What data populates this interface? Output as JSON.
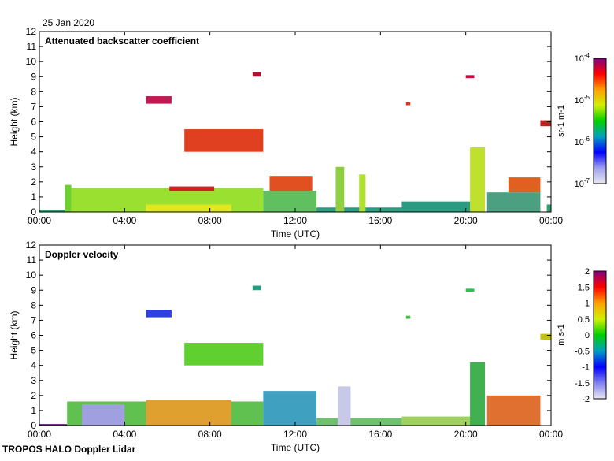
{
  "date_label": "25 Jan 2020",
  "footer": "TROPOS HALO Doppler Lidar",
  "chart_data": [
    {
      "type": "heatmap",
      "title": "Attenuated backscatter coefficient",
      "xlabel": "Time (UTC)",
      "ylabel": "Height (km)",
      "xlim": [
        0,
        24
      ],
      "ylim": [
        0,
        12
      ],
      "xticks": [
        "00:00",
        "04:00",
        "08:00",
        "12:00",
        "16:00",
        "20:00",
        "00:00"
      ],
      "yticks": [
        "0",
        "1",
        "2",
        "3",
        "4",
        "5",
        "6",
        "7",
        "8",
        "9",
        "10",
        "11",
        "12"
      ],
      "colorbar": {
        "label": "sr-1 m-1",
        "ticks": [
          "10-7",
          "10-6",
          "10-5",
          "10-4"
        ],
        "scale": "log",
        "range": [
          1e-07,
          0.0001
        ]
      },
      "features": [
        {
          "t0": 0,
          "t1": 1.3,
          "h0": 0,
          "h1": 0.15,
          "c": "#2aa070"
        },
        {
          "t0": 1.2,
          "t1": 1.5,
          "h0": 0,
          "h1": 1.8,
          "c": "#6cd030"
        },
        {
          "t0": 1.5,
          "t1": 10.5,
          "h0": 0,
          "h1": 1.6,
          "c": "#9ae030"
        },
        {
          "t0": 5,
          "t1": 9,
          "h0": 0,
          "h1": 0.5,
          "c": "#e0e820"
        },
        {
          "t0": 6.1,
          "t1": 8.2,
          "h0": 1.4,
          "h1": 1.7,
          "c": "#d02020"
        },
        {
          "t0": 10.5,
          "t1": 13,
          "h0": 0,
          "h1": 1.4,
          "c": "#60c060"
        },
        {
          "t0": 10.8,
          "t1": 12.8,
          "h0": 1.4,
          "h1": 2.4,
          "c": "#e05020"
        },
        {
          "t0": 13,
          "t1": 17,
          "h0": 0,
          "h1": 0.3,
          "c": "#2a9a80"
        },
        {
          "t0": 13.9,
          "t1": 14.3,
          "h0": 0,
          "h1": 3.0,
          "c": "#90d040"
        },
        {
          "t0": 15,
          "t1": 15.3,
          "h0": 0,
          "h1": 2.5,
          "c": "#b0e030"
        },
        {
          "t0": 17,
          "t1": 20.3,
          "h0": 0,
          "h1": 0.7,
          "c": "#2a9a80"
        },
        {
          "t0": 20.2,
          "t1": 20.9,
          "h0": 0,
          "h1": 4.3,
          "c": "#c0e030"
        },
        {
          "t0": 21,
          "t1": 23.5,
          "h0": 0,
          "h1": 1.3,
          "c": "#4aa080"
        },
        {
          "t0": 22,
          "t1": 23.5,
          "h0": 1.3,
          "h1": 2.3,
          "c": "#e06020"
        },
        {
          "t0": 23.8,
          "t1": 24,
          "h0": 0,
          "h1": 0.5,
          "c": "#30a070"
        },
        {
          "t0": 6.8,
          "t1": 10.5,
          "h0": 4.0,
          "h1": 5.5,
          "c": "#e04020"
        },
        {
          "t0": 5,
          "t1": 6.2,
          "h0": 7.2,
          "h1": 7.7,
          "c": "#c01850"
        },
        {
          "t0": 10,
          "t1": 10.4,
          "h0": 9.0,
          "h1": 9.3,
          "c": "#b01030"
        },
        {
          "t0": 17.2,
          "t1": 17.4,
          "h0": 7.1,
          "h1": 7.3,
          "c": "#e03020"
        },
        {
          "t0": 20,
          "t1": 20.4,
          "h0": 8.9,
          "h1": 9.1,
          "c": "#c01040"
        },
        {
          "t0": 23.5,
          "t1": 24,
          "h0": 5.7,
          "h1": 6.1,
          "c": "#c02020"
        }
      ]
    },
    {
      "type": "heatmap",
      "title": "Doppler velocity",
      "xlabel": "Time (UTC)",
      "ylabel": "Height (km)",
      "xlim": [
        0,
        24
      ],
      "ylim": [
        0,
        12
      ],
      "xticks": [
        "00:00",
        "04:00",
        "08:00",
        "12:00",
        "16:00",
        "20:00",
        "00:00"
      ],
      "yticks": [
        "0",
        "1",
        "2",
        "3",
        "4",
        "5",
        "6",
        "7",
        "8",
        "9",
        "10",
        "11",
        "12"
      ],
      "colorbar": {
        "label": "m s-1",
        "ticks": [
          "-2",
          "-1.5",
          "-1",
          "-0.5",
          "0",
          "0.5",
          "1",
          "1.5",
          "2"
        ],
        "range": [
          -2,
          2
        ]
      },
      "features": [
        {
          "t0": 0,
          "t1": 1.3,
          "h0": 0,
          "h1": 0.1,
          "c": "#6a2080"
        },
        {
          "t0": 1.3,
          "t1": 10.5,
          "h0": 0,
          "h1": 1.6,
          "c": "#60c050"
        },
        {
          "t0": 2,
          "t1": 4,
          "h0": 0,
          "h1": 1.4,
          "c": "#a0a0e0"
        },
        {
          "t0": 5,
          "t1": 9,
          "h0": 0,
          "h1": 1.7,
          "c": "#e0a030"
        },
        {
          "t0": 10.5,
          "t1": 13,
          "h0": 0,
          "h1": 2.3,
          "c": "#40a0c0"
        },
        {
          "t0": 13,
          "t1": 17,
          "h0": 0,
          "h1": 0.5,
          "c": "#70c070"
        },
        {
          "t0": 14,
          "t1": 14.6,
          "h0": 0,
          "h1": 2.6,
          "c": "#c8c8e8"
        },
        {
          "t0": 17,
          "t1": 20.3,
          "h0": 0,
          "h1": 0.6,
          "c": "#a0d060"
        },
        {
          "t0": 20.2,
          "t1": 20.9,
          "h0": 0,
          "h1": 4.2,
          "c": "#40b050"
        },
        {
          "t0": 21,
          "t1": 23.5,
          "h0": 0,
          "h1": 2.0,
          "c": "#e07030"
        },
        {
          "t0": 6.8,
          "t1": 10.5,
          "h0": 4.0,
          "h1": 5.5,
          "c": "#60d030"
        },
        {
          "t0": 5,
          "t1": 6.2,
          "h0": 7.2,
          "h1": 7.7,
          "c": "#3040e0"
        },
        {
          "t0": 10,
          "t1": 10.4,
          "h0": 9.0,
          "h1": 9.3,
          "c": "#20a080"
        },
        {
          "t0": 17.2,
          "t1": 17.4,
          "h0": 7.1,
          "h1": 7.3,
          "c": "#40c040"
        },
        {
          "t0": 20,
          "t1": 20.4,
          "h0": 8.9,
          "h1": 9.1,
          "c": "#30c050"
        },
        {
          "t0": 23.5,
          "t1": 24,
          "h0": 5.7,
          "h1": 6.1,
          "c": "#c0c020"
        }
      ]
    }
  ]
}
